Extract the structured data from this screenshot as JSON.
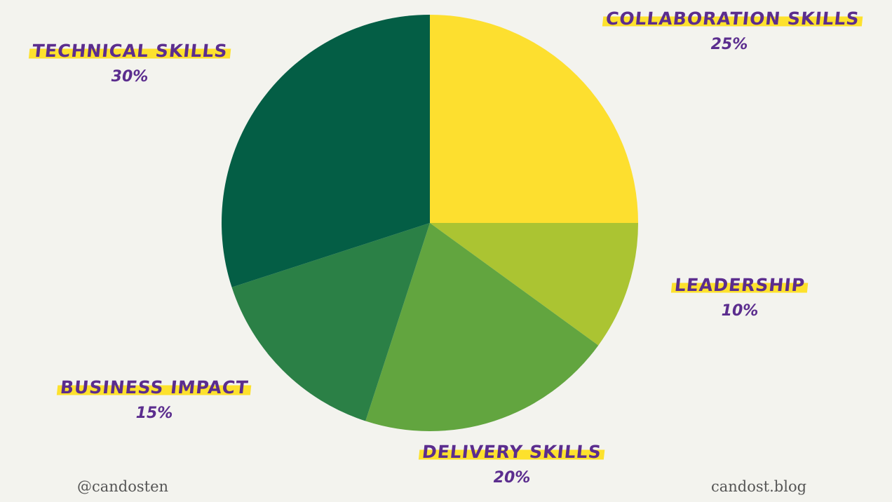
{
  "chart_data": {
    "type": "pie",
    "title": "",
    "slices": [
      {
        "label": "COLLABORATION SKILLS",
        "value": 25,
        "value_label": "25%",
        "color": "#fddf2f"
      },
      {
        "label": "LEADERSHIP",
        "value": 10,
        "value_label": "10%",
        "color": "#abc432"
      },
      {
        "label": "DELIVERY SKILLS",
        "value": 20,
        "value_label": "20%",
        "color": "#62a53f"
      },
      {
        "label": "BUSINESS IMPACT",
        "value": 15,
        "value_label": "15%",
        "color": "#2b8046"
      },
      {
        "label": "TECHNICAL SKILLS",
        "value": 30,
        "value_label": "30%",
        "color": "#045e45"
      }
    ]
  },
  "footer": {
    "handle": "@candosten",
    "site": "candost.blog"
  },
  "colors": {
    "background": "#f3f3ee",
    "label_text": "#5b2d8e",
    "highlight": "#fde12d"
  }
}
